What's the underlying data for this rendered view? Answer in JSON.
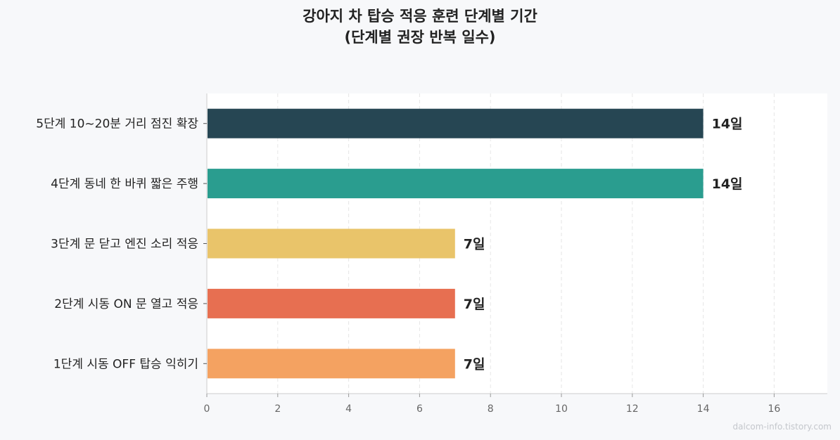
{
  "chart_data": {
    "type": "bar",
    "orientation": "horizontal",
    "title": "강아지 차 탑승 적응 훈련 단계별 기간",
    "subtitle": "(단계별 권장 반복 일수)",
    "categories": [
      "1단계 시동 OFF 탑승 익히기",
      "2단계 시동 ON 문 열고 적응",
      "3단계 문 닫고 엔진 소리 적응",
      "4단계 동네 한 바퀴 짧은 주행",
      "5단계 10~20분 거리 점진 확장"
    ],
    "values": [
      7,
      7,
      7,
      14,
      14
    ],
    "data_labels": [
      "7일",
      "7일",
      "7일",
      "14일",
      "14일"
    ],
    "colors": [
      "#f4a261",
      "#e76f51",
      "#e9c46a",
      "#2a9d8f",
      "#264653"
    ],
    "xlim": [
      0,
      17.5
    ],
    "xticks": [
      0,
      2,
      4,
      6,
      8,
      10,
      12,
      14,
      16
    ],
    "grid": "vertical dashed",
    "xlabel": "",
    "ylabel": ""
  },
  "watermark": "dalcom-info.tistory.com"
}
